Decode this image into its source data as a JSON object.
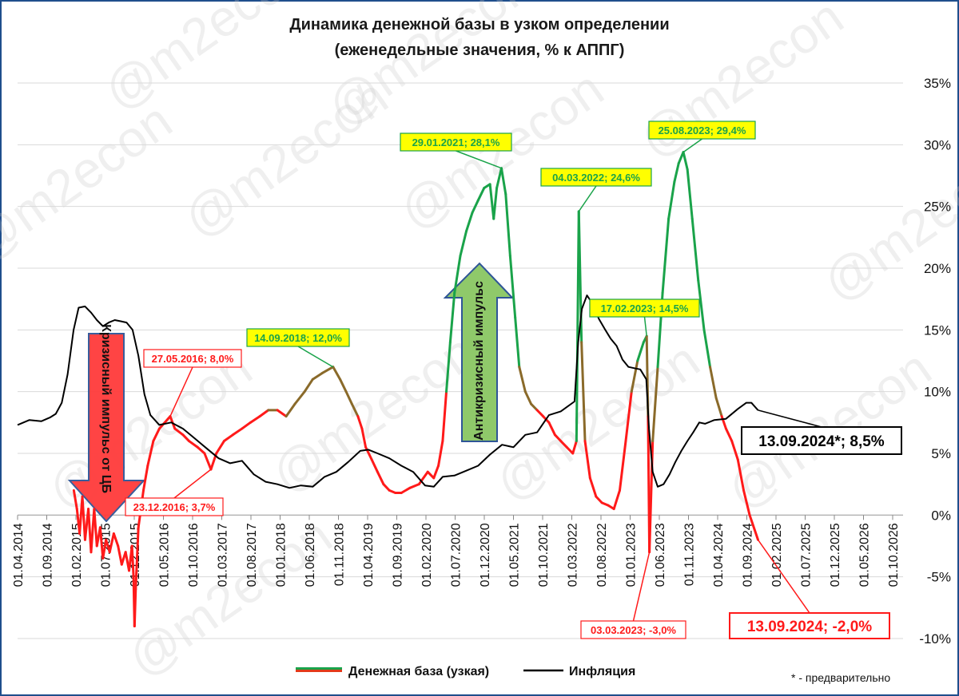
{
  "watermark": "@m2econ",
  "chart_data": {
    "type": "line",
    "title": "Динамика денежной базы в узком определении",
    "subtitle": "(еженедельные значения, % к АППГ)",
    "ylim": [
      -10,
      35
    ],
    "y_tick_labels": [
      "35%",
      "30%",
      "25%",
      "20%",
      "15%",
      "10%",
      "5%",
      "0%",
      "-5%",
      "-10%"
    ],
    "x_tick_labels": [
      "01.04.2014",
      "01.09.2014",
      "01.02.2015",
      "01.07.2015",
      "01.12.2015",
      "01.05.2016",
      "01.10.2016",
      "01.03.2017",
      "01.08.2017",
      "01.01.2018",
      "01.06.2018",
      "01.11.2018",
      "01.04.2019",
      "01.09.2019",
      "01.02.2020",
      "01.07.2020",
      "01.12.2020",
      "01.05.2021",
      "01.10.2021",
      "01.03.2022",
      "01.08.2022",
      "01.01.2023",
      "01.06.2023",
      "01.11.2023",
      "01.04.2024",
      "01.09.2024",
      "01.02.2025",
      "01.07.2025",
      "01.12.2025",
      "01.05.2026",
      "01.10.2026"
    ],
    "grid": "horizontal",
    "legend_position": "bottom",
    "series": [
      {
        "name": "Денежная база (узкая)",
        "color_high": "#1aa34a",
        "color_low": "#ff1a1a",
        "points": [
          [
            "2015-01-16",
            2.0
          ],
          [
            "2015-02-01",
            0.5
          ],
          [
            "2015-02-15",
            -1.5
          ],
          [
            "2015-03-01",
            1.5
          ],
          [
            "2015-03-15",
            -2.0
          ],
          [
            "2015-04-01",
            0.5
          ],
          [
            "2015-04-15",
            -3.0
          ],
          [
            "2015-05-01",
            0.5
          ],
          [
            "2015-05-15",
            -2.5
          ],
          [
            "2015-06-01",
            -1.0
          ],
          [
            "2015-06-15",
            -3.5
          ],
          [
            "2015-07-01",
            -2.0
          ],
          [
            "2015-07-20",
            -3.0
          ],
          [
            "2015-08-10",
            -1.5
          ],
          [
            "2015-09-01",
            -2.5
          ],
          [
            "2015-09-20",
            -4.0
          ],
          [
            "2015-10-10",
            -3.0
          ],
          [
            "2015-10-28",
            -4.5
          ],
          [
            "2015-11-12",
            -2.5
          ],
          [
            "2015-11-20",
            -5.0
          ],
          [
            "2015-11-25",
            -9.0
          ],
          [
            "2015-12-01",
            -6.0
          ],
          [
            "2015-12-15",
            -1.0
          ],
          [
            "2016-01-10",
            2.0
          ],
          [
            "2016-02-01",
            4.0
          ],
          [
            "2016-03-01",
            6.0
          ],
          [
            "2016-04-01",
            7.0
          ],
          [
            "2016-05-27",
            8.0
          ],
          [
            "2016-06-20",
            7.0
          ],
          [
            "2016-08-01",
            6.5
          ],
          [
            "2016-09-01",
            6.0
          ],
          [
            "2016-10-15",
            5.5
          ],
          [
            "2016-11-20",
            5.0
          ],
          [
            "2016-12-23",
            3.7
          ],
          [
            "2017-01-20",
            5.0
          ],
          [
            "2017-03-01",
            6.0
          ],
          [
            "2017-04-15",
            6.5
          ],
          [
            "2017-06-01",
            7.0
          ],
          [
            "2017-07-15",
            7.5
          ],
          [
            "2017-09-01",
            8.0
          ],
          [
            "2017-10-15",
            8.5
          ],
          [
            "2017-12-01",
            8.5
          ],
          [
            "2018-01-15",
            8.0
          ],
          [
            "2018-03-01",
            9.0
          ],
          [
            "2018-04-20",
            10.0
          ],
          [
            "2018-06-01",
            11.0
          ],
          [
            "2018-07-20",
            11.5
          ],
          [
            "2018-09-14",
            12.0
          ],
          [
            "2018-10-20",
            11.0
          ],
          [
            "2018-11-20",
            10.0
          ],
          [
            "2018-12-20",
            9.0
          ],
          [
            "2019-01-20",
            8.0
          ],
          [
            "2019-02-10",
            7.0
          ],
          [
            "2019-03-01",
            5.5
          ],
          [
            "2019-04-01",
            4.5
          ],
          [
            "2019-05-01",
            3.5
          ],
          [
            "2019-06-01",
            2.5
          ],
          [
            "2019-07-01",
            2.0
          ],
          [
            "2019-08-01",
            1.8
          ],
          [
            "2019-09-01",
            1.8
          ],
          [
            "2019-10-15",
            2.2
          ],
          [
            "2019-12-01",
            2.5
          ],
          [
            "2020-01-15",
            3.5
          ],
          [
            "2020-02-15",
            3.0
          ],
          [
            "2020-03-10",
            4.0
          ],
          [
            "2020-04-01",
            6.0
          ],
          [
            "2020-04-20",
            10.0
          ],
          [
            "2020-05-10",
            14.0
          ],
          [
            "2020-06-01",
            18.0
          ],
          [
            "2020-07-01",
            21.0
          ],
          [
            "2020-08-01",
            23.0
          ],
          [
            "2020-09-01",
            24.5
          ],
          [
            "2020-10-01",
            25.5
          ],
          [
            "2020-11-01",
            26.5
          ],
          [
            "2020-12-01",
            26.8
          ],
          [
            "2020-12-20",
            24.0
          ],
          [
            "2021-01-05",
            26.5
          ],
          [
            "2021-01-29",
            28.1
          ],
          [
            "2021-02-20",
            26.0
          ],
          [
            "2021-03-15",
            21.0
          ],
          [
            "2021-04-10",
            16.0
          ],
          [
            "2021-05-01",
            12.0
          ],
          [
            "2021-06-01",
            10.0
          ],
          [
            "2021-07-01",
            9.0
          ],
          [
            "2021-08-01",
            8.5
          ],
          [
            "2021-09-01",
            8.0
          ],
          [
            "2021-10-01",
            7.5
          ],
          [
            "2021-11-01",
            6.5
          ],
          [
            "2021-12-01",
            6.0
          ],
          [
            "2022-01-01",
            5.5
          ],
          [
            "2022-02-01",
            5.0
          ],
          [
            "2022-02-20",
            6.0
          ],
          [
            "2022-03-04",
            24.6
          ],
          [
            "2022-03-18",
            14.0
          ],
          [
            "2022-04-05",
            6.0
          ],
          [
            "2022-05-01",
            3.0
          ],
          [
            "2022-06-01",
            1.5
          ],
          [
            "2022-07-01",
            1.0
          ],
          [
            "2022-08-01",
            0.8
          ],
          [
            "2022-09-01",
            0.5
          ],
          [
            "2022-10-01",
            2.0
          ],
          [
            "2022-11-01",
            6.0
          ],
          [
            "2022-12-01",
            10.0
          ],
          [
            "2023-01-01",
            12.5
          ],
          [
            "2023-02-01",
            14.0
          ],
          [
            "2023-02-17",
            14.5
          ],
          [
            "2023-02-24",
            8.0
          ],
          [
            "2023-03-03",
            -3.0
          ],
          [
            "2023-03-20",
            6.0
          ],
          [
            "2023-04-15",
            12.0
          ],
          [
            "2023-05-10",
            18.0
          ],
          [
            "2023-06-10",
            24.0
          ],
          [
            "2023-07-10",
            27.0
          ],
          [
            "2023-08-01",
            28.5
          ],
          [
            "2023-08-25",
            29.4
          ],
          [
            "2023-09-15",
            28.0
          ],
          [
            "2023-10-10",
            24.0
          ],
          [
            "2023-11-10",
            19.0
          ],
          [
            "2023-12-10",
            15.0
          ],
          [
            "2024-01-10",
            12.0
          ],
          [
            "2024-02-10",
            9.5
          ],
          [
            "2024-03-10",
            8.0
          ],
          [
            "2024-04-01",
            7.0
          ],
          [
            "2024-05-01",
            6.0
          ],
          [
            "2024-06-01",
            4.5
          ],
          [
            "2024-07-01",
            2.0
          ],
          [
            "2024-08-01",
            0.0
          ],
          [
            "2024-09-13",
            -2.0
          ]
        ]
      },
      {
        "name": "Инфляция",
        "color": "#000000",
        "points": [
          [
            "2014-04-01",
            7.3
          ],
          [
            "2014-06-01",
            7.7
          ],
          [
            "2014-08-01",
            7.6
          ],
          [
            "2014-09-15",
            7.9
          ],
          [
            "2014-10-15",
            8.2
          ],
          [
            "2014-11-15",
            9.1
          ],
          [
            "2014-12-15",
            11.4
          ],
          [
            "2015-01-15",
            15.0
          ],
          [
            "2015-02-10",
            16.8
          ],
          [
            "2015-03-15",
            16.9
          ],
          [
            "2015-04-15",
            16.4
          ],
          [
            "2015-05-15",
            15.8
          ],
          [
            "2015-06-15",
            15.3
          ],
          [
            "2015-07-15",
            15.6
          ],
          [
            "2015-08-15",
            15.8
          ],
          [
            "2015-09-15",
            15.7
          ],
          [
            "2015-10-15",
            15.6
          ],
          [
            "2015-11-15",
            15.0
          ],
          [
            "2015-12-15",
            12.9
          ],
          [
            "2016-01-15",
            9.8
          ],
          [
            "2016-02-15",
            8.1
          ],
          [
            "2016-04-01",
            7.3
          ],
          [
            "2016-06-01",
            7.5
          ],
          [
            "2016-08-01",
            7.0
          ],
          [
            "2016-10-01",
            6.2
          ],
          [
            "2016-12-01",
            5.4
          ],
          [
            "2017-02-01",
            4.6
          ],
          [
            "2017-04-01",
            4.2
          ],
          [
            "2017-06-01",
            4.4
          ],
          [
            "2017-08-01",
            3.3
          ],
          [
            "2017-10-01",
            2.7
          ],
          [
            "2017-12-01",
            2.5
          ],
          [
            "2018-02-01",
            2.2
          ],
          [
            "2018-04-01",
            2.4
          ],
          [
            "2018-06-01",
            2.3
          ],
          [
            "2018-08-01",
            3.1
          ],
          [
            "2018-10-01",
            3.5
          ],
          [
            "2018-12-01",
            4.3
          ],
          [
            "2019-02-01",
            5.2
          ],
          [
            "2019-03-15",
            5.3
          ],
          [
            "2019-05-01",
            5.0
          ],
          [
            "2019-07-01",
            4.6
          ],
          [
            "2019-09-01",
            4.0
          ],
          [
            "2019-11-01",
            3.5
          ],
          [
            "2020-01-01",
            2.4
          ],
          [
            "2020-02-15",
            2.3
          ],
          [
            "2020-04-01",
            3.1
          ],
          [
            "2020-06-01",
            3.2
          ],
          [
            "2020-08-01",
            3.6
          ],
          [
            "2020-10-01",
            4.0
          ],
          [
            "2020-12-01",
            4.9
          ],
          [
            "2021-02-01",
            5.7
          ],
          [
            "2021-04-01",
            5.5
          ],
          [
            "2021-06-01",
            6.5
          ],
          [
            "2021-08-01",
            6.7
          ],
          [
            "2021-10-01",
            8.1
          ],
          [
            "2021-12-01",
            8.4
          ],
          [
            "2022-02-10",
            9.2
          ],
          [
            "2022-03-01",
            14.0
          ],
          [
            "2022-03-20",
            16.7
          ],
          [
            "2022-04-15",
            17.8
          ],
          [
            "2022-05-15",
            17.1
          ],
          [
            "2022-06-15",
            15.9
          ],
          [
            "2022-07-15",
            15.1
          ],
          [
            "2022-08-15",
            14.3
          ],
          [
            "2022-09-15",
            13.7
          ],
          [
            "2022-10-15",
            12.6
          ],
          [
            "2022-11-15",
            12.0
          ],
          [
            "2022-12-15",
            11.9
          ],
          [
            "2023-01-15",
            11.8
          ],
          [
            "2023-02-15",
            11.0
          ],
          [
            "2023-03-01",
            7.0
          ],
          [
            "2023-03-20",
            3.5
          ],
          [
            "2023-04-15",
            2.3
          ],
          [
            "2023-05-15",
            2.5
          ],
          [
            "2023-06-15",
            3.3
          ],
          [
            "2023-07-15",
            4.3
          ],
          [
            "2023-08-15",
            5.2
          ],
          [
            "2023-09-15",
            6.0
          ],
          [
            "2023-10-15",
            6.7
          ],
          [
            "2023-11-15",
            7.5
          ],
          [
            "2023-12-15",
            7.4
          ],
          [
            "2024-02-01",
            7.7
          ],
          [
            "2024-04-01",
            7.8
          ],
          [
            "2024-06-01",
            8.6
          ],
          [
            "2024-07-15",
            9.1
          ],
          [
            "2024-08-10",
            9.1
          ],
          [
            "2024-09-13",
            8.5
          ]
        ]
      }
    ],
    "annotations": {
      "green": [
        "14.09.2018; 12,0%",
        "29.01.2021; 28,1%",
        "04.03.2022; 24,6%",
        "17.02.2023; 14,5%",
        "25.08.2023; 29,4%"
      ],
      "red": [
        "27.05.2016; 8,0%",
        "23.12.2016; 3,7%",
        "03.03.2023; -3,0%"
      ],
      "last_red": "13.09.2024; -2,0%",
      "last_black": "13.09.2024*; 8,5%"
    },
    "arrows": {
      "crisis": "Кризисный импульс от ЦБ",
      "anticrisis": "Антикризисный импульс"
    },
    "footnote": "* - предварительно"
  }
}
